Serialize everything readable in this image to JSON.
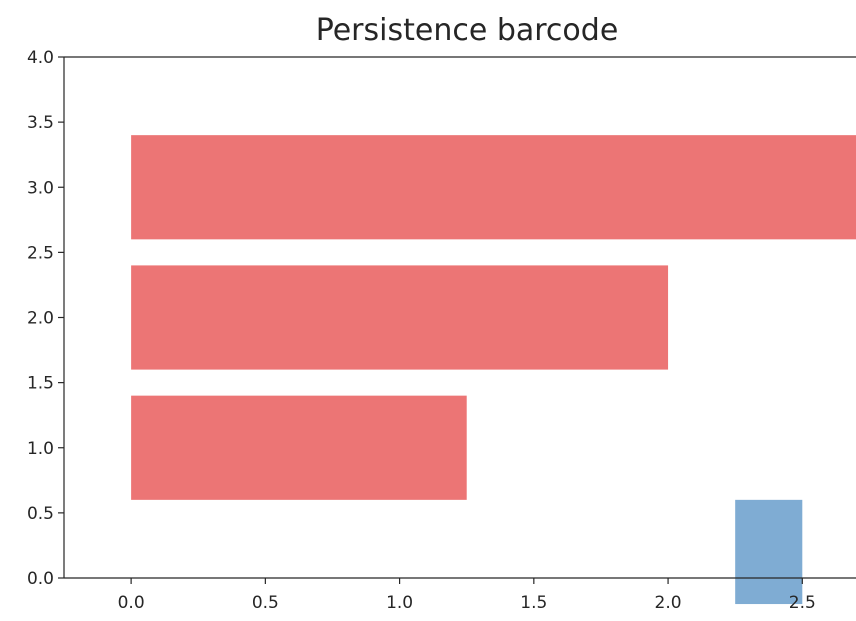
{
  "chart_data": {
    "type": "bar",
    "orientation": "horizontal",
    "title": "Persistence barcode",
    "xlabel": "",
    "ylabel": "",
    "xlim": [
      -0.25,
      2.7
    ],
    "ylim": [
      0.0,
      4.0
    ],
    "x_ticks": [
      "0.0",
      "0.5",
      "1.0",
      "1.5",
      "2.0",
      "2.5"
    ],
    "y_ticks": [
      "0.0",
      "0.5",
      "1.0",
      "1.5",
      "2.0",
      "2.5",
      "3.0",
      "3.5",
      "4.0"
    ],
    "grid": false,
    "legend": "none",
    "bar_height": 0.8,
    "bars": [
      {
        "y": 0.2,
        "start": 2.25,
        "end": 2.5,
        "color": "#7facd3",
        "dimension": 1
      },
      {
        "y": 1.0,
        "start": 0.0,
        "end": 1.25,
        "color": "#ec7575",
        "dimension": 0
      },
      {
        "y": 2.0,
        "start": 0.0,
        "end": 2.0,
        "color": "#ec7575",
        "dimension": 0
      },
      {
        "y": 3.0,
        "start": 0.0,
        "end": 2.7,
        "color": "#ec7575",
        "dimension": 0
      }
    ]
  }
}
